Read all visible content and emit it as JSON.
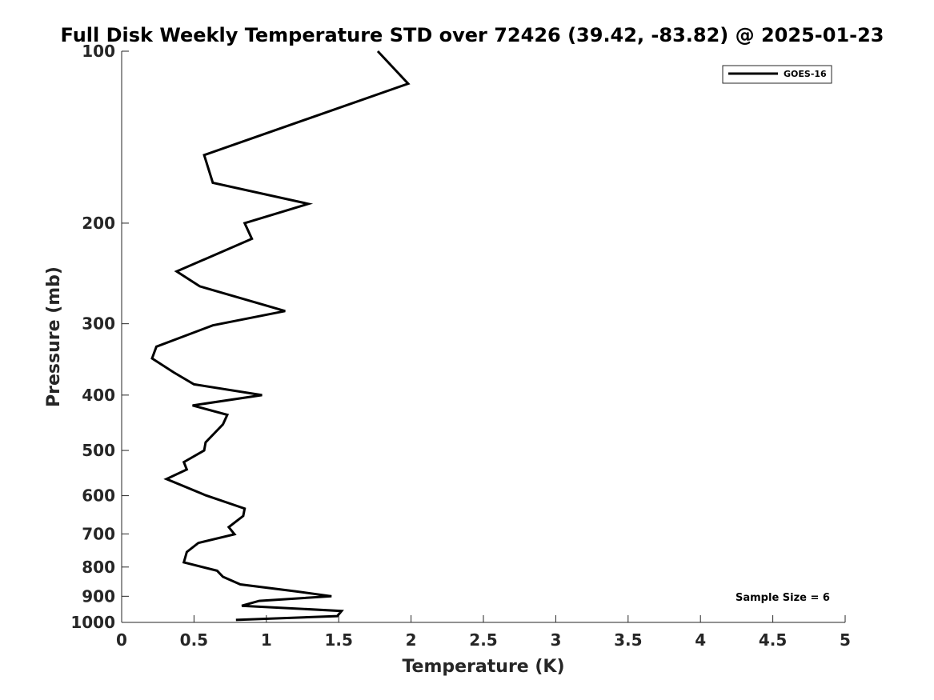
{
  "chart_data": {
    "type": "line",
    "title": "Full Disk Weekly Temperature STD over 72426 (39.42, -83.82) @ 2025-01-23",
    "xlabel": "Temperature (K)",
    "ylabel": "Pressure (mb)",
    "xlim": [
      0,
      5
    ],
    "ylim": [
      100,
      1000
    ],
    "y_scale": "log",
    "y_reversed": true,
    "grid": false,
    "legend_position": "top-right",
    "x_ticks": [
      "0",
      "0.5",
      "1",
      "1.5",
      "2",
      "2.5",
      "3",
      "3.5",
      "4",
      "4.5",
      "5"
    ],
    "y_ticks": [
      "100",
      "200",
      "300",
      "400",
      "500",
      "600",
      "700",
      "800",
      "900",
      "1000"
    ],
    "series": [
      {
        "name": "GOES-16",
        "color": "#000000",
        "x": [
          1.77,
          1.98,
          0.57,
          0.63,
          1.29,
          0.85,
          0.9,
          0.38,
          0.54,
          1.13,
          0.63,
          0.24,
          0.21,
          0.36,
          0.5,
          0.97,
          0.49,
          0.73,
          0.7,
          0.58,
          0.57,
          0.43,
          0.45,
          0.31,
          0.58,
          0.85,
          0.84,
          0.74,
          0.78,
          0.53,
          0.45,
          0.43,
          0.66,
          0.7,
          0.82,
          1.2,
          1.45,
          0.95,
          0.83,
          1.52,
          1.49,
          0.79
        ],
        "y": [
          100,
          114,
          152,
          170,
          185,
          200,
          213,
          243,
          258,
          285,
          302,
          329,
          345,
          365,
          383,
          400,
          417,
          433,
          450,
          484,
          500,
          524,
          540,
          561,
          599,
          632,
          651,
          681,
          701,
          726,
          753,
          785,
          812,
          832,
          858,
          882,
          900,
          917,
          935,
          955,
          975,
          990
        ]
      }
    ],
    "annotations": [
      "Sample Size = 6"
    ]
  }
}
